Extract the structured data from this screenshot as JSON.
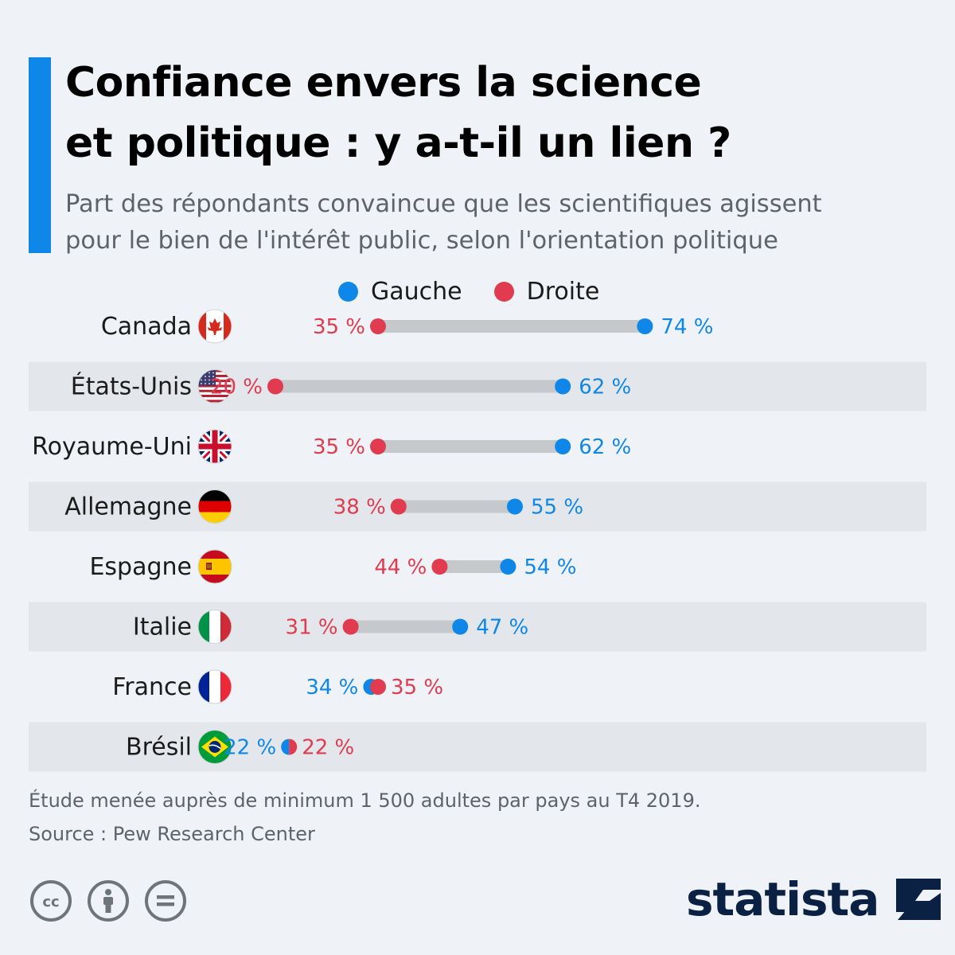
{
  "title_line1": "Confiance envers la science",
  "title_line2": "et politique : y a-t-il un lien ?",
  "subtitle_line1": "Part des répondants convaincue que les scientifiques agissent",
  "subtitle_line2": "pour le bien de l'intérêt public, selon l'orientation politique",
  "colors": {
    "gauche": "#0f87e8",
    "droite": "#e03b4f",
    "accent": "#0f87e8",
    "bar": "#c6c9cc",
    "row_band": "#e3e7ec"
  },
  "chart_data": {
    "type": "dumbbell",
    "unit": "%",
    "series": [
      {
        "name": "Gauche",
        "color": "#0f87e8",
        "values": [
          74,
          62,
          62,
          55,
          54,
          47,
          34,
          22
        ]
      },
      {
        "name": "Droite",
        "color": "#e03b4f",
        "values": [
          35,
          20,
          35,
          38,
          44,
          31,
          35,
          22
        ]
      }
    ],
    "categories": [
      "Canada",
      "États-Unis",
      "Royaume-Uni",
      "Allemagne",
      "Espagne",
      "Italie",
      "France",
      "Brésil"
    ],
    "flags": [
      "canada-flag-icon",
      "usa-flag-icon",
      "uk-flag-icon",
      "germany-flag-icon",
      "spain-flag-icon",
      "italy-flag-icon",
      "france-flag-icon",
      "brazil-flag-icon"
    ],
    "value_labels": {
      "gauche": [
        "74 %",
        "62 %",
        "62 %",
        "55 %",
        "54 %",
        "47 %",
        "34 %",
        "22 %"
      ],
      "droite": [
        "35 %",
        "20 %",
        "35 %",
        "38 %",
        "44 %",
        "31 %",
        "35 %",
        "22 %"
      ]
    }
  },
  "footnote_line1": "Étude menée auprès de minimum 1 500 adultes par pays au T4 2019.",
  "footnote_line2": "Source : Pew Research Center",
  "license_icons": [
    "creative-commons-icon",
    "attribution-icon",
    "no-derivatives-icon"
  ],
  "logo_text": "statista"
}
